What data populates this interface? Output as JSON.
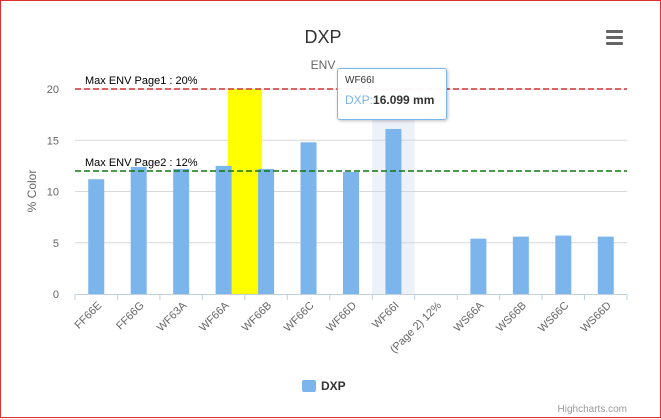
{
  "chart_data": {
    "type": "bar",
    "title": "DXP",
    "subtitle": "ENV",
    "ylabel": "% Color",
    "xlabel": "",
    "ylim": [
      0,
      20
    ],
    "yticks": [
      0,
      5,
      10,
      15,
      20
    ],
    "categories": [
      "FF66E",
      "FF66G",
      "WF63A",
      "WF66A",
      "WF66B",
      "WF66C",
      "WF66D",
      "WF66I",
      "(Page 2) 12%",
      "WS66A",
      "WS66B",
      "WS66C",
      "WS66D"
    ],
    "series": [
      {
        "name": "DXP",
        "color": "#7cb5ec",
        "values": [
          11.2,
          12.4,
          12.2,
          12.5,
          12.2,
          14.8,
          11.9,
          16.099,
          null,
          5.4,
          5.6,
          5.7,
          5.6
        ]
      }
    ],
    "highlight_band": {
      "category_from": "WF66A",
      "category_to": "WF66B",
      "y_from": 0,
      "y_to": 20,
      "color": "#ffff00"
    },
    "hover_category": "WF66I",
    "plot_lines": [
      {
        "label": "Max ENV Page1 : 20%",
        "value": 20,
        "color": "#cc3333",
        "style": "dashed"
      },
      {
        "label": "Max ENV Page2 : 12%",
        "value": 12,
        "color": "#117711",
        "style": "dashed"
      }
    ],
    "legend": {
      "position": "bottom-center",
      "entries": [
        "DXP"
      ]
    },
    "credits": "Highcharts.com"
  },
  "tooltip": {
    "header": "WF66I",
    "series_label": "DXP:",
    "value": "16.099 mm"
  },
  "menu_icon": "hamburger-menu-icon"
}
